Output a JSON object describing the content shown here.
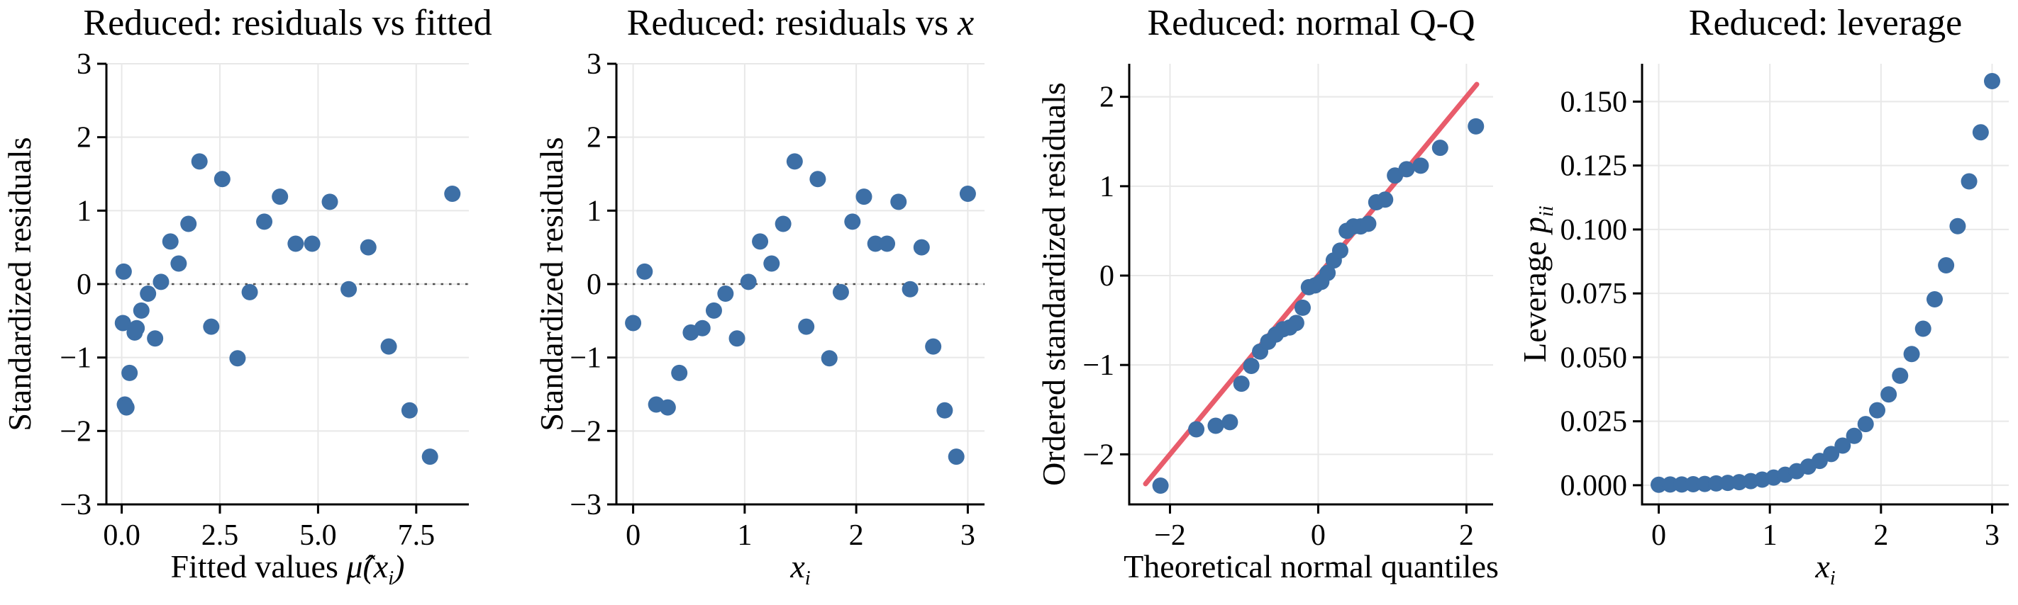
{
  "figure": {
    "background": "#ffffff",
    "n_points_per_panel": 30
  },
  "style": {
    "point_color": "#3D6FA6",
    "qq_line_color": "#E85C6B",
    "grid_color": "#E8E8E8",
    "spine_color": "#000000",
    "zero_line_color": "#4D4D4D",
    "text_color": "#000000"
  },
  "chart_data": [
    {
      "type": "scatter",
      "title": "Reduced: residuals vs fitted",
      "title_parts": [
        {
          "t": "Reduced: residuals vs fitted",
          "i": 0
        }
      ],
      "xlabel": "Fitted values μ̂(x_i)",
      "xlabel_parts": [
        {
          "t": "Fitted values ",
          "i": 0
        },
        {
          "t": "μ̂(x",
          "i": 1
        },
        {
          "t": "i",
          "i": 1,
          "sub": 1
        },
        {
          "t": ")",
          "i": 1
        }
      ],
      "ylabel": "Standardized residuals",
      "ylabel_parts": [
        {
          "t": "Standardized residuals",
          "i": 0
        }
      ],
      "xlim": [
        -0.39,
        8.84
      ],
      "ylim": [
        -3,
        3
      ],
      "xticks": [
        [
          0,
          "0.0"
        ],
        [
          2.5,
          "2.5"
        ],
        [
          5,
          "5.0"
        ],
        [
          7.5,
          "7.5"
        ]
      ],
      "yticks": [
        [
          -3,
          "−3"
        ],
        [
          -2,
          "−2"
        ],
        [
          -1,
          "−1"
        ],
        [
          0,
          "0"
        ],
        [
          1,
          "1"
        ],
        [
          2,
          "2"
        ],
        [
          3,
          "3"
        ]
      ],
      "grid": true,
      "zero_line": 0,
      "x": [
        0.03,
        0.05,
        0.08,
        0.12,
        0.2,
        0.33,
        0.38,
        0.5,
        0.67,
        0.85,
        1.0,
        1.24,
        1.45,
        1.7,
        1.98,
        2.28,
        2.56,
        2.95,
        3.26,
        3.63,
        4.03,
        4.43,
        4.85,
        5.3,
        5.78,
        6.28,
        6.8,
        7.33,
        7.85,
        8.42
      ],
      "y": [
        -0.53,
        0.17,
        -1.64,
        -1.68,
        -1.21,
        -0.66,
        -0.6,
        -0.36,
        -0.13,
        -0.74,
        0.03,
        0.58,
        0.28,
        0.82,
        1.67,
        -0.58,
        1.43,
        -1.01,
        -0.11,
        0.85,
        1.19,
        0.55,
        0.55,
        1.12,
        -0.07,
        0.5,
        -0.85,
        -1.72,
        -2.35,
        1.23
      ]
    },
    {
      "type": "scatter",
      "title": "Reduced: residuals vs x",
      "title_parts": [
        {
          "t": "Reduced: residuals vs ",
          "i": 0
        },
        {
          "t": "x",
          "i": 1
        }
      ],
      "xlabel": "x_i",
      "xlabel_parts": [
        {
          "t": "x",
          "i": 1
        },
        {
          "t": "i",
          "i": 1,
          "sub": 1
        }
      ],
      "ylabel": "Standardized residuals",
      "ylabel_parts": [
        {
          "t": "Standardized residuals",
          "i": 0
        }
      ],
      "xlim": [
        -0.15,
        3.15
      ],
      "ylim": [
        -3,
        3
      ],
      "xticks": [
        [
          0,
          "0"
        ],
        [
          1,
          "1"
        ],
        [
          2,
          "2"
        ],
        [
          3,
          "3"
        ]
      ],
      "yticks": [
        [
          -3,
          "−3"
        ],
        [
          -2,
          "−2"
        ],
        [
          -1,
          "−1"
        ],
        [
          0,
          "0"
        ],
        [
          1,
          "1"
        ],
        [
          2,
          "2"
        ],
        [
          3,
          "3"
        ]
      ],
      "grid": true,
      "zero_line": 0,
      "x": [
        0,
        0.103,
        0.207,
        0.31,
        0.414,
        0.517,
        0.621,
        0.724,
        0.828,
        0.931,
        1.034,
        1.138,
        1.241,
        1.345,
        1.448,
        1.552,
        1.655,
        1.759,
        1.862,
        1.966,
        2.069,
        2.172,
        2.276,
        2.379,
        2.483,
        2.586,
        2.69,
        2.793,
        2.897,
        3.0
      ],
      "y": [
        -0.53,
        0.17,
        -1.64,
        -1.68,
        -1.21,
        -0.66,
        -0.6,
        -0.36,
        -0.13,
        -0.74,
        0.03,
        0.58,
        0.28,
        0.82,
        1.67,
        -0.58,
        1.43,
        -1.01,
        -0.11,
        0.85,
        1.19,
        0.55,
        0.55,
        1.12,
        -0.07,
        0.5,
        -0.85,
        -1.72,
        -2.35,
        1.23
      ]
    },
    {
      "type": "scatter",
      "title": "Reduced: normal Q-Q",
      "title_parts": [
        {
          "t": "Reduced: normal Q-Q",
          "i": 0
        }
      ],
      "xlabel": "Theoretical normal quantiles",
      "xlabel_parts": [
        {
          "t": "Theoretical normal quantiles",
          "i": 0
        }
      ],
      "ylabel": "Ordered standardized residuals",
      "ylabel_parts": [
        {
          "t": "Ordered standardized residuals",
          "i": 0
        }
      ],
      "xlim": [
        -2.55,
        2.36
      ],
      "ylim": [
        -2.56,
        2.37
      ],
      "xticks": [
        [
          -2,
          "−2"
        ],
        [
          0,
          "0"
        ],
        [
          2,
          "2"
        ]
      ],
      "yticks": [
        [
          -2,
          "−2"
        ],
        [
          -1,
          "−1"
        ],
        [
          0,
          "0"
        ],
        [
          1,
          "1"
        ],
        [
          2,
          "2"
        ]
      ],
      "grid": true,
      "line": {
        "x": [
          -2.33,
          2.14
        ],
        "y": [
          -2.33,
          2.14
        ]
      },
      "x": [
        -2.128,
        -1.645,
        -1.383,
        -1.192,
        -1.036,
        -0.903,
        -0.784,
        -0.675,
        -0.573,
        -0.476,
        -0.385,
        -0.297,
        -0.21,
        -0.126,
        -0.042,
        0.042,
        0.126,
        0.21,
        0.297,
        0.385,
        0.476,
        0.573,
        0.675,
        0.784,
        0.903,
        1.036,
        1.192,
        1.383,
        1.645,
        2.128
      ],
      "y": [
        -2.35,
        -1.72,
        -1.68,
        -1.64,
        -1.21,
        -1.01,
        -0.85,
        -0.74,
        -0.66,
        -0.6,
        -0.58,
        -0.53,
        -0.36,
        -0.13,
        -0.11,
        -0.07,
        0.03,
        0.17,
        0.28,
        0.5,
        0.55,
        0.55,
        0.58,
        0.82,
        0.85,
        1.12,
        1.19,
        1.23,
        1.43,
        1.67
      ]
    },
    {
      "type": "scatter",
      "title": "Reduced: leverage",
      "title_parts": [
        {
          "t": "Reduced: leverage",
          "i": 0
        }
      ],
      "xlabel": "x_i",
      "xlabel_parts": [
        {
          "t": "x",
          "i": 1
        },
        {
          "t": "i",
          "i": 1,
          "sub": 1
        }
      ],
      "ylabel": "Leverage p_ii",
      "ylabel_parts": [
        {
          "t": "Leverage ",
          "i": 0
        },
        {
          "t": "p",
          "i": 1
        },
        {
          "t": "ii",
          "i": 1,
          "sub": 1
        }
      ],
      "xlim": [
        -0.15,
        3.15
      ],
      "ylim": [
        -0.0075,
        0.1648
      ],
      "xticks": [
        [
          0,
          "0"
        ],
        [
          1,
          "1"
        ],
        [
          2,
          "2"
        ],
        [
          3,
          "3"
        ]
      ],
      "yticks": [
        [
          0,
          "0.000"
        ],
        [
          0.025,
          "0.025"
        ],
        [
          0.05,
          "0.050"
        ],
        [
          0.075,
          "0.075"
        ],
        [
          0.1,
          "0.100"
        ],
        [
          0.125,
          "0.125"
        ],
        [
          0.15,
          "0.150"
        ]
      ],
      "grid": true,
      "x": [
        0,
        0.103,
        0.207,
        0.31,
        0.414,
        0.517,
        0.621,
        0.724,
        0.828,
        0.931,
        1.034,
        1.138,
        1.241,
        1.345,
        1.448,
        1.552,
        1.655,
        1.759,
        1.862,
        1.966,
        2.069,
        2.172,
        2.276,
        2.379,
        2.483,
        2.586,
        2.69,
        2.793,
        2.897,
        3.0
      ],
      "y": [
        0.0002,
        0.0003,
        0.0003,
        0.0004,
        0.0005,
        0.0007,
        0.0009,
        0.0012,
        0.0016,
        0.0022,
        0.003,
        0.0041,
        0.0055,
        0.0073,
        0.0095,
        0.0122,
        0.0155,
        0.0193,
        0.0239,
        0.0293,
        0.0355,
        0.0428,
        0.0513,
        0.0612,
        0.0727,
        0.086,
        0.1013,
        0.1188,
        0.138,
        0.158
      ]
    }
  ]
}
